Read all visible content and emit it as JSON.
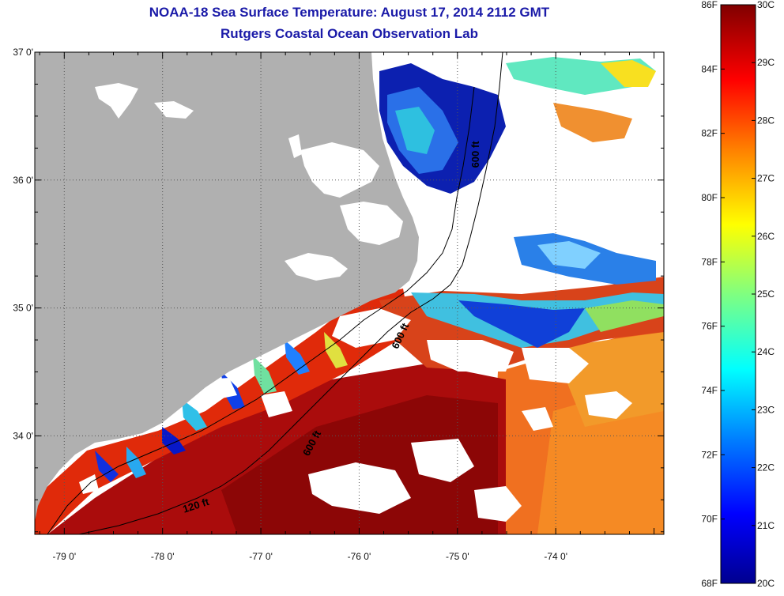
{
  "title_line1": "NOAA-18 Sea Surface Temperature:  August 17, 2014 2112 GMT",
  "title_line2": "Rutgers Coastal Ocean Observation Lab",
  "map": {
    "lon_range": [
      -79.3,
      -72.9
    ],
    "lat_range": [
      33.23,
      37.0
    ],
    "lon_ticks": [
      -79,
      -78,
      -77,
      -76,
      -75,
      -74
    ],
    "lon_tick_labels": [
      "-79 0'",
      "-78 0'",
      "-77 0'",
      "-76 0'",
      "-75 0'",
      "-74 0'"
    ],
    "lat_ticks": [
      37,
      36,
      35,
      34
    ],
    "lat_tick_labels": [
      "37 0'",
      "36 0'",
      "35 0'",
      "34 0'"
    ],
    "grid": "dotted",
    "land_color": "#b0b0b0",
    "contour_labels": [
      {
        "text": "600 ft",
        "lon": -74.78,
        "lat": 36.2,
        "angle": -90
      },
      {
        "text": "600 ft",
        "lon": -75.55,
        "lat": 34.77,
        "angle": -65
      },
      {
        "text": "600 ft",
        "lon": -76.45,
        "lat": 33.93,
        "angle": -62
      },
      {
        "text": "120 ft",
        "lon": -77.65,
        "lat": 33.43,
        "angle": -18
      }
    ]
  },
  "colorbar": {
    "fahrenheit_labels": [
      "86F",
      "84F",
      "82F",
      "80F",
      "78F",
      "76F",
      "74F",
      "72F",
      "70F",
      "68F"
    ],
    "celsius_labels": [
      "30C",
      "29C",
      "28C",
      "27C",
      "26C",
      "25C",
      "24C",
      "23C",
      "22C",
      "21C",
      "20C"
    ],
    "range_f": [
      68,
      86
    ],
    "range_c": [
      20,
      30
    ],
    "colors": [
      "#00008f",
      "#0000ff",
      "#0080ff",
      "#00ffff",
      "#80ff80",
      "#ffff00",
      "#ff8000",
      "#ff0000",
      "#800000"
    ]
  }
}
